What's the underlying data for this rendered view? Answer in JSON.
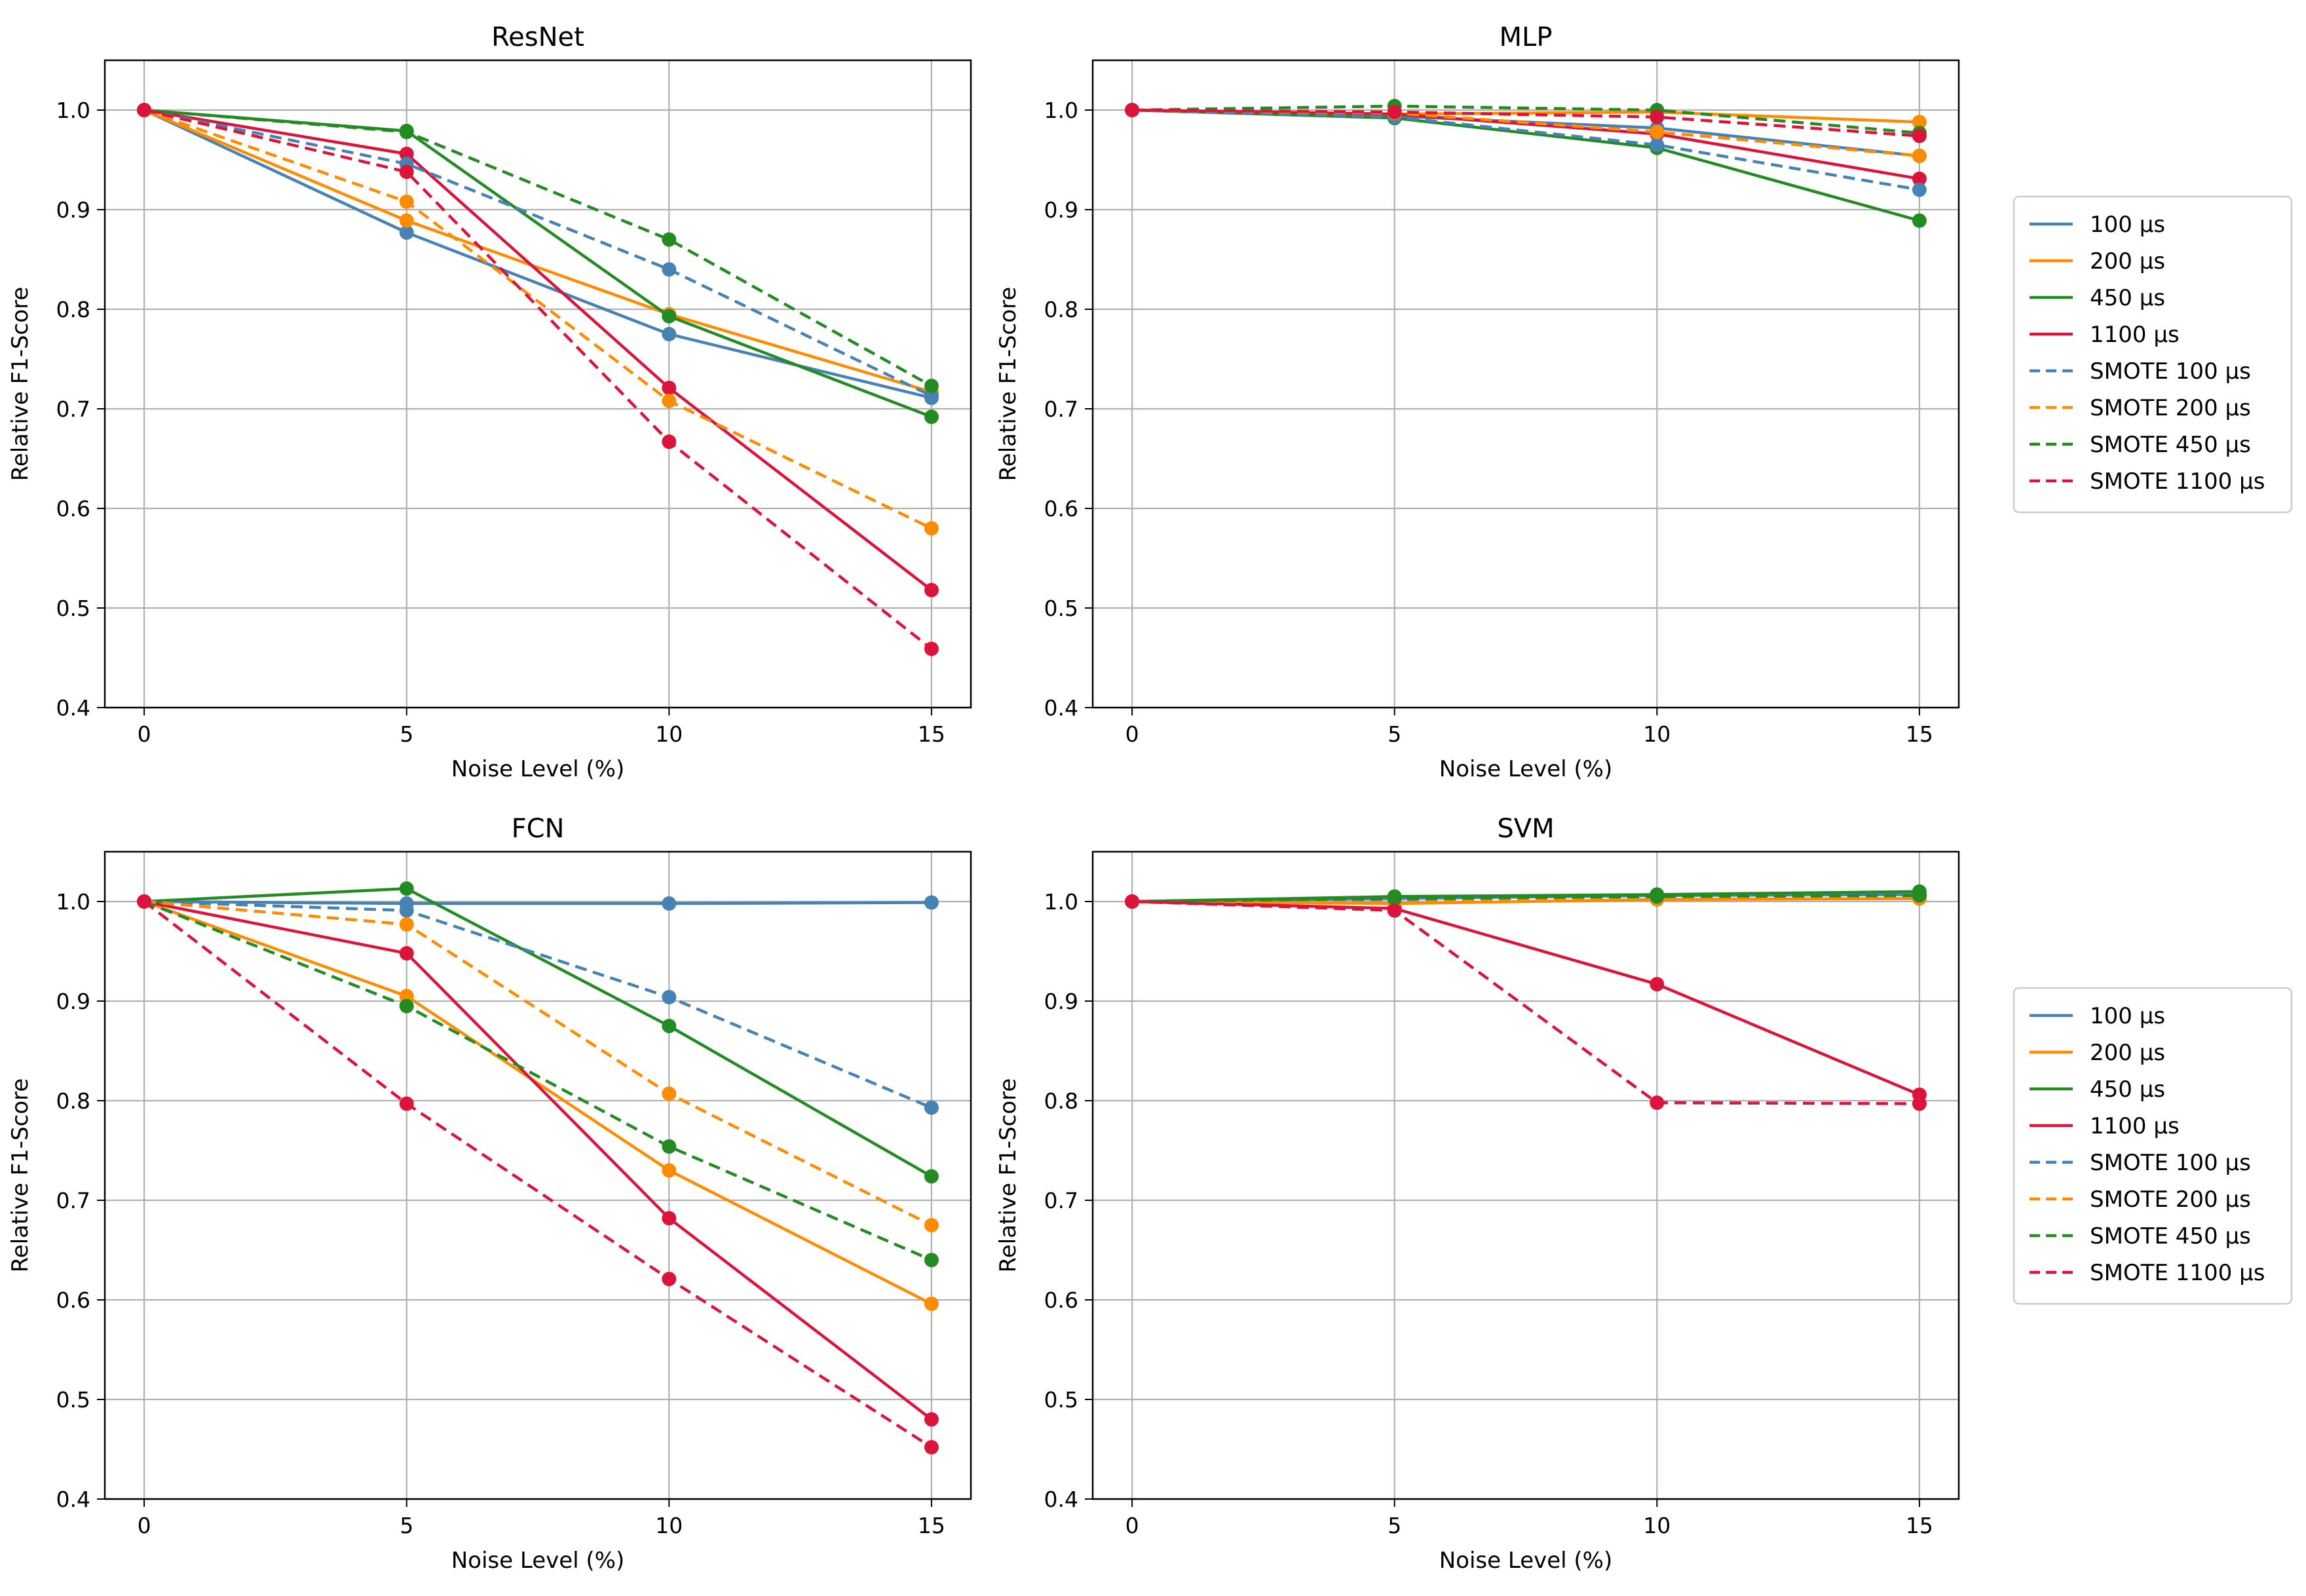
{
  "colors": {
    "series": [
      "#4682b4",
      "#ff8c00",
      "#228b22",
      "#dc143c"
    ],
    "grid": "#b0b0b0",
    "axes": "#000000",
    "background": "#ffffff",
    "legend_frame": "#cccccc"
  },
  "legend": {
    "placement": "right of each row",
    "entries": [
      "100 µs",
      "200 µs",
      "450 µs",
      "1100 µs",
      "SMOTE 100 µs",
      "SMOTE 200 µs",
      "SMOTE 450 µs",
      "SMOTE 1100 µs"
    ]
  },
  "chart_data": [
    {
      "type": "line",
      "title": "ResNet",
      "xlabel": "Noise Level (%)",
      "ylabel": "Relative F1-Score",
      "x": [
        0,
        5,
        10,
        15
      ],
      "xlim": [
        -0.75,
        15.75
      ],
      "ylim": [
        0.4,
        1.05
      ],
      "xticks": [
        "0",
        "5",
        "10",
        "15"
      ],
      "yticks": [
        "0.4",
        "0.5",
        "0.6",
        "0.7",
        "0.8",
        "0.9",
        "1.0"
      ],
      "grid": true,
      "series": [
        {
          "name": "100 µs",
          "values": [
            1.0,
            0.877,
            0.775,
            0.711
          ],
          "style": "solid"
        },
        {
          "name": "200 µs",
          "values": [
            1.0,
            0.889,
            0.795,
            0.717
          ],
          "style": "solid"
        },
        {
          "name": "450 µs",
          "values": [
            1.0,
            0.979,
            0.793,
            0.692
          ],
          "style": "solid"
        },
        {
          "name": "1100 µs",
          "values": [
            1.0,
            0.956,
            0.721,
            0.518
          ],
          "style": "solid"
        },
        {
          "name": "SMOTE 100 µs",
          "values": [
            1.0,
            0.946,
            0.84,
            0.713
          ],
          "style": "dashed"
        },
        {
          "name": "SMOTE 200 µs",
          "values": [
            1.0,
            0.908,
            0.708,
            0.58
          ],
          "style": "dashed"
        },
        {
          "name": "SMOTE 450 µs",
          "values": [
            1.0,
            0.978,
            0.87,
            0.723
          ],
          "style": "dashed"
        },
        {
          "name": "SMOTE 1100 µs",
          "values": [
            1.0,
            0.938,
            0.667,
            0.459
          ],
          "style": "dashed"
        }
      ]
    },
    {
      "type": "line",
      "title": "MLP",
      "xlabel": "Noise Level (%)",
      "ylabel": "Relative F1-Score",
      "x": [
        0,
        5,
        10,
        15
      ],
      "xlim": [
        -0.75,
        15.75
      ],
      "ylim": [
        0.4,
        1.05
      ],
      "xticks": [
        "0",
        "5",
        "10",
        "15"
      ],
      "yticks": [
        "0.4",
        "0.5",
        "0.6",
        "0.7",
        "0.8",
        "0.9",
        "1.0"
      ],
      "grid": true,
      "series": [
        {
          "name": "100 µs",
          "values": [
            1.0,
            0.994,
            0.982,
            0.954
          ],
          "style": "solid"
        },
        {
          "name": "200 µs",
          "values": [
            1.0,
            0.996,
            0.998,
            0.988
          ],
          "style": "solid"
        },
        {
          "name": "450 µs",
          "values": [
            1.0,
            0.992,
            0.962,
            0.889
          ],
          "style": "solid"
        },
        {
          "name": "1100 µs",
          "values": [
            1.0,
            0.996,
            0.976,
            0.931
          ],
          "style": "solid"
        },
        {
          "name": "SMOTE 100 µs",
          "values": [
            1.0,
            0.993,
            0.965,
            0.92
          ],
          "style": "dashed"
        },
        {
          "name": "SMOTE 200 µs",
          "values": [
            1.0,
            0.997,
            0.978,
            0.954
          ],
          "style": "dashed"
        },
        {
          "name": "SMOTE 450 µs",
          "values": [
            1.0,
            1.004,
            1.0,
            0.977
          ],
          "style": "dashed"
        },
        {
          "name": "SMOTE 1100 µs",
          "values": [
            1.0,
            0.998,
            0.993,
            0.974
          ],
          "style": "dashed"
        }
      ]
    },
    {
      "type": "line",
      "title": "FCN",
      "xlabel": "Noise Level (%)",
      "ylabel": "Relative F1-Score",
      "x": [
        0,
        5,
        10,
        15
      ],
      "xlim": [
        -0.75,
        15.75
      ],
      "ylim": [
        0.4,
        1.05
      ],
      "xticks": [
        "0",
        "5",
        "10",
        "15"
      ],
      "yticks": [
        "0.4",
        "0.5",
        "0.6",
        "0.7",
        "0.8",
        "0.9",
        "1.0"
      ],
      "grid": true,
      "series": [
        {
          "name": "100 µs",
          "values": [
            1.0,
            0.998,
            0.998,
            0.999
          ],
          "style": "solid"
        },
        {
          "name": "200 µs",
          "values": [
            1.0,
            0.905,
            0.73,
            0.596
          ],
          "style": "solid"
        },
        {
          "name": "450 µs",
          "values": [
            1.0,
            1.013,
            0.875,
            0.724
          ],
          "style": "solid"
        },
        {
          "name": "1100 µs",
          "values": [
            1.0,
            0.948,
            0.682,
            0.48
          ],
          "style": "solid"
        },
        {
          "name": "SMOTE 100 µs",
          "values": [
            1.0,
            0.991,
            0.904,
            0.793
          ],
          "style": "dashed"
        },
        {
          "name": "SMOTE 200 µs",
          "values": [
            1.0,
            0.977,
            0.807,
            0.675
          ],
          "style": "dashed"
        },
        {
          "name": "SMOTE 450 µs",
          "values": [
            1.0,
            0.895,
            0.754,
            0.64
          ],
          "style": "dashed"
        },
        {
          "name": "SMOTE 1100 µs",
          "values": [
            1.0,
            0.797,
            0.621,
            0.452
          ],
          "style": "dashed"
        }
      ]
    },
    {
      "type": "line",
      "title": "SVM",
      "xlabel": "Noise Level (%)",
      "ylabel": "Relative F1-Score",
      "x": [
        0,
        5,
        10,
        15
      ],
      "xlim": [
        -0.75,
        15.75
      ],
      "ylim": [
        0.4,
        1.05
      ],
      "xticks": [
        "0",
        "5",
        "10",
        "15"
      ],
      "yticks": [
        "0.4",
        "0.5",
        "0.6",
        "0.7",
        "0.8",
        "0.9",
        "1.0"
      ],
      "grid": true,
      "series": [
        {
          "name": "100 µs",
          "values": [
            1.0,
            1.003,
            1.006,
            1.007
          ],
          "style": "solid"
        },
        {
          "name": "200 µs",
          "values": [
            1.0,
            0.998,
            1.002,
            1.003
          ],
          "style": "solid"
        },
        {
          "name": "450 µs",
          "values": [
            1.0,
            1.005,
            1.007,
            1.01
          ],
          "style": "solid"
        },
        {
          "name": "1100 µs",
          "values": [
            1.0,
            0.993,
            0.917,
            0.806
          ],
          "style": "solid"
        },
        {
          "name": "SMOTE 100 µs",
          "values": [
            1.0,
            1.002,
            1.004,
            1.005
          ],
          "style": "dashed"
        },
        {
          "name": "SMOTE 200 µs",
          "values": [
            1.0,
            0.999,
            1.003,
            1.004
          ],
          "style": "dashed"
        },
        {
          "name": "SMOTE 450 µs",
          "values": [
            1.0,
            1.003,
            1.005,
            1.006
          ],
          "style": "dashed"
        },
        {
          "name": "SMOTE 1100 µs",
          "values": [
            1.0,
            0.991,
            0.798,
            0.797
          ],
          "style": "dashed"
        }
      ]
    }
  ]
}
